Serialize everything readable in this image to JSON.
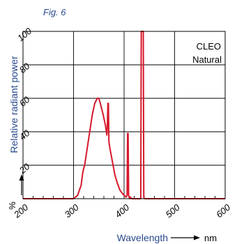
{
  "figure_label": "Fig. 6",
  "legend": {
    "lines": [
      "CLEO",
      "Natural"
    ]
  },
  "axes": {
    "ylabel": "Relative radiant power",
    "yunit": "%",
    "xlabel": "Wavelength",
    "xunit": "nm",
    "xticks": [
      "200",
      "300",
      "400",
      "500",
      "600"
    ],
    "yticks": [
      "20",
      "40",
      "60",
      "80",
      "100"
    ]
  },
  "colors": {
    "series": "#d7182a",
    "axis_text": "#2a4b8c",
    "grid": "#000000"
  },
  "chart_data": {
    "type": "line",
    "title": "",
    "xlabel": "Wavelength",
    "xunit": "nm",
    "ylabel": "Relative radiant power",
    "yunit": "%",
    "xlim": [
      200,
      600
    ],
    "ylim": [
      0,
      100
    ],
    "grid": true,
    "series": [
      {
        "name": "CLEO Natural",
        "x": [
          200,
          300,
          308,
          315,
          318,
          320,
          322,
          327,
          332,
          337,
          342,
          347,
          350,
          353,
          358,
          363,
          366,
          367,
          368,
          369,
          370,
          372,
          377,
          382,
          387,
          392,
          397,
          400,
          404,
          406,
          407,
          408,
          409,
          410,
          411,
          412,
          415,
          430,
          433,
          434,
          435,
          436,
          437,
          438,
          439,
          440,
          600
        ],
        "y": [
          0,
          0,
          2,
          8,
          15,
          18,
          20,
          30,
          40,
          50,
          57,
          60,
          60,
          57,
          51,
          44,
          38,
          45,
          57,
          57,
          34,
          30,
          22,
          14,
          9,
          5,
          3,
          2,
          1,
          2,
          39,
          39,
          2,
          1,
          0,
          1,
          0,
          0,
          0,
          100,
          100,
          100,
          100,
          100,
          1,
          0,
          0
        ]
      }
    ]
  }
}
